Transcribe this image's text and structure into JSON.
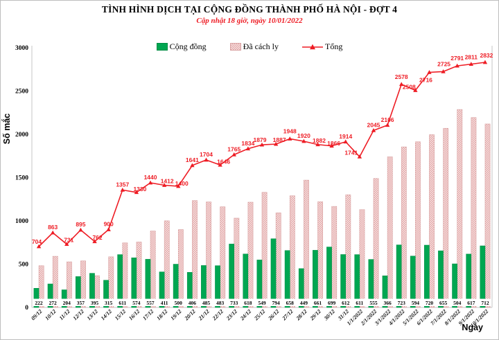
{
  "title": "TÌNH HÌNH DỊCH TẠI CỘNG ĐỒNG THÀNH PHỐ HÀ NỘI - ĐỢT 4",
  "subtitle": "Cập nhật 18 giờ, ngày 10/01/2022",
  "legend": {
    "cong_dong": "Cộng đồng",
    "da_cach_ly": "Đã cách ly",
    "tong": "Tổng"
  },
  "axes": {
    "y_label": "Số mắc",
    "x_label": "Ngày",
    "y_ticks": [
      0,
      500,
      1000,
      1500,
      2000,
      2500,
      3000
    ]
  },
  "colors": {
    "green": "#00a651",
    "green_border": "#008c43",
    "pink_light": "#fae8e8",
    "pink_dark": "#e0a4a4",
    "pink_border": "#d8a0a0",
    "red": "#ee1c24",
    "axis": "#c6c6c6",
    "text": "#000000"
  },
  "chart_data": {
    "type": "bar",
    "note": "combo chart: two bar series + one line series",
    "title": "TÌNH HÌNH DỊCH TẠI CỘNG ĐỒNG THÀNH PHỐ HÀ NỘI - ĐỢT 4",
    "xlabel": "Ngày",
    "ylabel": "Số mắc",
    "ylim": [
      0,
      3000
    ],
    "grid": false,
    "legend_position": "top",
    "categories": [
      "09/12",
      "10/12",
      "11/12",
      "12/12",
      "13/12",
      "14/12",
      "15/12",
      "16/12",
      "17/12",
      "18/12",
      "19/12",
      "20/12",
      "21/12",
      "22/12",
      "23/12",
      "24/12",
      "25/12",
      "26/12",
      "27/12",
      "28/12",
      "29/12",
      "30/12",
      "31/12",
      "1/1/2022",
      "2/1/2022",
      "3/1/2022",
      "4/1/2022",
      "5/1/2022",
      "6/1/2022",
      "7/1/2022",
      "8/1/2022",
      "9/1/2022",
      "10/1/2022"
    ],
    "series": [
      {
        "name": "Cộng đồng",
        "render": "bar",
        "values": [
          222,
          272,
          204,
          357,
          395,
          315,
          611,
          574,
          557,
          411,
          500,
          406,
          485,
          483,
          733,
          618,
          549,
          794,
          658,
          449,
          661,
          699,
          612,
          611,
          555,
          366,
          723,
          594,
          720,
          655,
          504,
          617,
          712
        ]
      },
      {
        "name": "Đã cách ly",
        "render": "bar",
        "values": [
          482,
          591,
          527,
          538,
          367,
          585,
          746,
          756,
          883,
          1001,
          900,
          1235,
          1219,
          1163,
          1032,
          1216,
          1330,
          1093,
          1290,
          1471,
          1221,
          1167,
          1302,
          1130,
          1490,
          1740,
          1855,
          1914,
          1996,
          2070,
          2287,
          2194,
          2120
        ]
      },
      {
        "name": "Tổng",
        "render": "line",
        "values": [
          704,
          863,
          731,
          895,
          762,
          900,
          1357,
          1330,
          1440,
          1412,
          1400,
          1641,
          1704,
          1646,
          1765,
          1834,
          1879,
          1887,
          1948,
          1920,
          1882,
          1866,
          1914,
          1741,
          2045,
          2106,
          2578,
          2508,
          2716,
          2725,
          2791,
          2811,
          2832
        ]
      }
    ]
  }
}
